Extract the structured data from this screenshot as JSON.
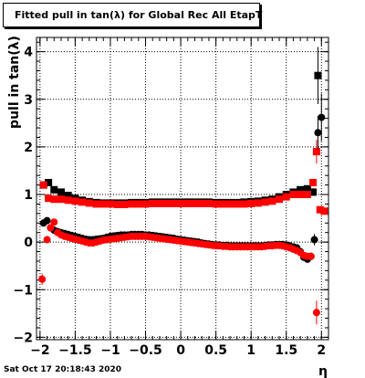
{
  "chart_data": {
    "type": "scatter",
    "title": "Fitted pull in tan(λ) for Global Rec All EtapT",
    "xlabel": "η",
    "ylabel": "pull in tan(λ)",
    "xlim": [
      -2.05,
      2.1
    ],
    "ylim": [
      -2.05,
      4.3
    ],
    "grid": true,
    "x_ticks": [
      "−2",
      "−1.5",
      "−1",
      "−0.5",
      "0",
      "0.5",
      "1",
      "1.5",
      "2"
    ],
    "y_ticks": [
      "−2",
      "−1",
      "0",
      "1",
      "2",
      "3",
      "4"
    ],
    "series": [
      {
        "marker": "square",
        "color": "#000000",
        "x": [
          -1.95,
          -1.88,
          -1.8,
          -1.7,
          -1.6,
          -1.5,
          -1.4,
          -1.3,
          -1.2,
          -1.1,
          -1.0,
          -0.9,
          -0.8,
          -0.7,
          -0.6,
          -0.5,
          -0.4,
          -0.3,
          -0.2,
          -0.1,
          0.0,
          0.1,
          0.2,
          0.3,
          0.4,
          0.5,
          0.6,
          0.7,
          0.8,
          0.9,
          1.0,
          1.1,
          1.2,
          1.3,
          1.4,
          1.5,
          1.6,
          1.7,
          1.8,
          1.88,
          1.95
        ],
        "y": [
          1.2,
          1.25,
          1.1,
          1.05,
          0.98,
          0.92,
          0.88,
          0.85,
          0.83,
          0.82,
          0.82,
          0.82,
          0.82,
          0.83,
          0.83,
          0.83,
          0.84,
          0.84,
          0.84,
          0.84,
          0.84,
          0.84,
          0.84,
          0.84,
          0.84,
          0.83,
          0.83,
          0.83,
          0.83,
          0.84,
          0.85,
          0.86,
          0.88,
          0.9,
          0.95,
          1.0,
          1.05,
          1.1,
          1.12,
          1.05,
          3.5
        ],
        "yerr": [
          0.05,
          0.05,
          0.03,
          0.02,
          0.02,
          0.02,
          0.02,
          0.02,
          0.02,
          0.02,
          0.02,
          0.02,
          0.02,
          0.02,
          0.02,
          0.02,
          0.02,
          0.02,
          0.02,
          0.02,
          0.02,
          0.02,
          0.02,
          0.02,
          0.02,
          0.02,
          0.02,
          0.02,
          0.02,
          0.02,
          0.02,
          0.02,
          0.02,
          0.02,
          0.02,
          0.02,
          0.02,
          0.03,
          0.04,
          0.08,
          0.6
        ]
      },
      {
        "marker": "square",
        "color": "#ff0000",
        "x": [
          -1.95,
          -1.88,
          -1.8,
          -1.7,
          -1.6,
          -1.5,
          -1.4,
          -1.3,
          -1.2,
          -1.1,
          -1.0,
          -0.9,
          -0.8,
          -0.7,
          -0.6,
          -0.5,
          -0.4,
          -0.3,
          -0.2,
          -0.1,
          0.0,
          0.1,
          0.2,
          0.3,
          0.4,
          0.5,
          0.6,
          0.7,
          0.8,
          0.9,
          1.0,
          1.1,
          1.2,
          1.3,
          1.4,
          1.5,
          1.6,
          1.7,
          1.8,
          1.88,
          1.93,
          1.98,
          2.04
        ],
        "y": [
          1.2,
          0.92,
          0.9,
          0.9,
          0.88,
          0.86,
          0.84,
          0.82,
          0.8,
          0.8,
          0.8,
          0.79,
          0.79,
          0.8,
          0.8,
          0.8,
          0.81,
          0.81,
          0.81,
          0.81,
          0.81,
          0.81,
          0.81,
          0.81,
          0.81,
          0.8,
          0.8,
          0.8,
          0.8,
          0.8,
          0.81,
          0.82,
          0.84,
          0.86,
          0.9,
          0.95,
          1.0,
          1.0,
          1.0,
          1.25,
          1.9,
          0.68,
          0.65
        ],
        "yerr": [
          0.05,
          0.04,
          0.03,
          0.02,
          0.02,
          0.02,
          0.02,
          0.02,
          0.02,
          0.02,
          0.02,
          0.02,
          0.02,
          0.02,
          0.02,
          0.02,
          0.02,
          0.02,
          0.02,
          0.02,
          0.02,
          0.02,
          0.02,
          0.02,
          0.02,
          0.02,
          0.02,
          0.02,
          0.02,
          0.02,
          0.02,
          0.02,
          0.02,
          0.02,
          0.02,
          0.02,
          0.03,
          0.03,
          0.04,
          0.08,
          0.25,
          0.05,
          0.05
        ]
      },
      {
        "marker": "circle",
        "color": "#000000",
        "x": [
          -1.95,
          -1.9,
          -1.85,
          -1.8,
          -1.75,
          -1.7,
          -1.65,
          -1.6,
          -1.55,
          -1.5,
          -1.45,
          -1.4,
          -1.35,
          -1.3,
          -1.25,
          -1.2,
          -1.15,
          -1.1,
          -1.05,
          -1.0,
          -0.95,
          -0.9,
          -0.85,
          -0.8,
          -0.75,
          -0.7,
          -0.65,
          -0.6,
          -0.55,
          -0.5,
          -0.45,
          -0.4,
          -0.35,
          -0.3,
          -0.25,
          -0.2,
          -0.15,
          -0.1,
          -0.05,
          0.0,
          0.05,
          0.1,
          0.15,
          0.2,
          0.25,
          0.3,
          0.35,
          0.4,
          0.45,
          0.5,
          0.55,
          0.6,
          0.65,
          0.7,
          0.75,
          0.8,
          0.85,
          0.9,
          0.95,
          1.0,
          1.05,
          1.1,
          1.15,
          1.2,
          1.25,
          1.3,
          1.35,
          1.4,
          1.45,
          1.5,
          1.55,
          1.6,
          1.65,
          1.7,
          1.75,
          1.8,
          1.85,
          1.9,
          1.95,
          2.0
        ],
        "y": [
          0.4,
          0.45,
          0.3,
          0.25,
          0.22,
          0.2,
          0.18,
          0.16,
          0.14,
          0.12,
          0.1,
          0.08,
          0.06,
          0.05,
          0.05,
          0.06,
          0.07,
          0.08,
          0.1,
          0.12,
          0.13,
          0.14,
          0.15,
          0.15,
          0.15,
          0.16,
          0.16,
          0.16,
          0.16,
          0.15,
          0.15,
          0.14,
          0.13,
          0.12,
          0.11,
          0.1,
          0.09,
          0.08,
          0.06,
          0.05,
          0.04,
          0.03,
          0.02,
          0.01,
          0.0,
          -0.02,
          -0.03,
          -0.04,
          -0.05,
          -0.06,
          -0.06,
          -0.07,
          -0.07,
          -0.08,
          -0.08,
          -0.08,
          -0.08,
          -0.08,
          -0.08,
          -0.08,
          -0.08,
          -0.08,
          -0.08,
          -0.07,
          -0.06,
          -0.06,
          -0.05,
          -0.05,
          -0.05,
          -0.06,
          -0.08,
          -0.1,
          -0.12,
          -0.2,
          -0.32,
          -0.36,
          -0.3,
          0.05,
          2.3,
          2.62
        ],
        "yerr": [
          0.05,
          0.05,
          0.03,
          0.02,
          0.02,
          0.02,
          0.02,
          0.02,
          0.02,
          0.02,
          0.02,
          0.02,
          0.02,
          0.02,
          0.02,
          0.02,
          0.02,
          0.02,
          0.02,
          0.02,
          0.02,
          0.02,
          0.02,
          0.02,
          0.02,
          0.02,
          0.02,
          0.02,
          0.02,
          0.02,
          0.02,
          0.02,
          0.02,
          0.02,
          0.02,
          0.02,
          0.02,
          0.02,
          0.02,
          0.02,
          0.02,
          0.02,
          0.02,
          0.02,
          0.02,
          0.02,
          0.02,
          0.02,
          0.02,
          0.02,
          0.02,
          0.02,
          0.02,
          0.02,
          0.02,
          0.02,
          0.02,
          0.02,
          0.02,
          0.02,
          0.02,
          0.02,
          0.02,
          0.02,
          0.02,
          0.02,
          0.02,
          0.02,
          0.02,
          0.02,
          0.02,
          0.02,
          0.02,
          0.03,
          0.04,
          0.05,
          0.08,
          0.12,
          0.35,
          0.5
        ]
      },
      {
        "marker": "circle",
        "color": "#ff0000",
        "x": [
          -1.97,
          -1.9,
          -1.85,
          -1.8,
          -1.75,
          -1.7,
          -1.65,
          -1.6,
          -1.55,
          -1.5,
          -1.45,
          -1.4,
          -1.35,
          -1.3,
          -1.25,
          -1.2,
          -1.15,
          -1.1,
          -1.05,
          -1.0,
          -0.95,
          -0.9,
          -0.85,
          -0.8,
          -0.75,
          -0.7,
          -0.65,
          -0.6,
          -0.55,
          -0.5,
          -0.45,
          -0.4,
          -0.35,
          -0.3,
          -0.25,
          -0.2,
          -0.15,
          -0.1,
          -0.05,
          0.0,
          0.05,
          0.1,
          0.15,
          0.2,
          0.25,
          0.3,
          0.35,
          0.4,
          0.45,
          0.5,
          0.55,
          0.6,
          0.65,
          0.7,
          0.75,
          0.8,
          0.85,
          0.9,
          0.95,
          1.0,
          1.05,
          1.1,
          1.15,
          1.2,
          1.25,
          1.3,
          1.35,
          1.4,
          1.45,
          1.5,
          1.55,
          1.6,
          1.65,
          1.7,
          1.75,
          1.8,
          1.85,
          1.93
        ],
        "y": [
          -0.78,
          0.05,
          0.3,
          0.42,
          0.2,
          0.15,
          0.12,
          0.1,
          0.08,
          0.06,
          0.04,
          0.02,
          0.0,
          -0.02,
          -0.02,
          0.0,
          0.02,
          0.04,
          0.05,
          0.06,
          0.07,
          0.08,
          0.09,
          0.1,
          0.11,
          0.12,
          0.12,
          0.12,
          0.12,
          0.12,
          0.11,
          0.1,
          0.09,
          0.08,
          0.07,
          0.06,
          0.05,
          0.04,
          0.03,
          0.02,
          0.01,
          0.0,
          -0.01,
          -0.02,
          -0.03,
          -0.04,
          -0.05,
          -0.06,
          -0.07,
          -0.08,
          -0.08,
          -0.09,
          -0.09,
          -0.1,
          -0.1,
          -0.1,
          -0.1,
          -0.1,
          -0.1,
          -0.1,
          -0.1,
          -0.1,
          -0.1,
          -0.09,
          -0.08,
          -0.08,
          -0.07,
          -0.07,
          -0.08,
          -0.1,
          -0.12,
          -0.15,
          -0.18,
          -0.22,
          -0.28,
          -0.3,
          -0.3,
          -1.48
        ],
        "yerr": [
          0.12,
          0.05,
          0.05,
          0.04,
          0.02,
          0.02,
          0.02,
          0.02,
          0.02,
          0.02,
          0.02,
          0.02,
          0.02,
          0.02,
          0.02,
          0.02,
          0.02,
          0.02,
          0.02,
          0.02,
          0.02,
          0.02,
          0.02,
          0.02,
          0.02,
          0.02,
          0.02,
          0.02,
          0.02,
          0.02,
          0.02,
          0.02,
          0.02,
          0.02,
          0.02,
          0.02,
          0.02,
          0.02,
          0.02,
          0.02,
          0.02,
          0.02,
          0.02,
          0.02,
          0.02,
          0.02,
          0.02,
          0.02,
          0.02,
          0.02,
          0.02,
          0.02,
          0.02,
          0.02,
          0.02,
          0.02,
          0.02,
          0.02,
          0.02,
          0.02,
          0.02,
          0.02,
          0.02,
          0.02,
          0.02,
          0.02,
          0.02,
          0.02,
          0.02,
          0.02,
          0.02,
          0.03,
          0.03,
          0.03,
          0.04,
          0.05,
          0.05,
          0.25
        ]
      }
    ]
  },
  "footer": {
    "datestamp": "Sat Oct 17 20:18:43 2020"
  }
}
